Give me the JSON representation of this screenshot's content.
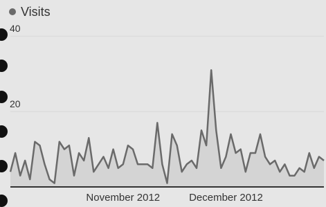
{
  "chart_data": {
    "type": "area",
    "categories": [
      null,
      null,
      null,
      null,
      null,
      null,
      null,
      null,
      null,
      null,
      null,
      null,
      null,
      null,
      null,
      null,
      null,
      null,
      null,
      null,
      null,
      null,
      null,
      "November 2012",
      null,
      null,
      null,
      null,
      null,
      null,
      null,
      null,
      null,
      null,
      null,
      null,
      null,
      null,
      null,
      null,
      null,
      null,
      null,
      null,
      "December 2012",
      null,
      null,
      null,
      null,
      null,
      null,
      null,
      null,
      null,
      null,
      null,
      null,
      null,
      null,
      null,
      null,
      null,
      null,
      null,
      null
    ],
    "series": [
      {
        "name": "Visits",
        "color": "#6a6a6a",
        "fill": "#d4d4d4",
        "values": [
          4,
          9,
          3,
          7,
          2,
          12,
          11,
          6,
          2,
          1,
          12,
          10,
          11,
          3,
          9,
          7,
          13,
          4,
          6,
          8,
          5,
          10,
          5,
          6,
          11,
          10,
          6,
          6,
          6,
          5,
          17,
          6,
          1,
          14,
          11,
          4,
          6,
          7,
          5,
          15,
          11,
          31,
          15,
          5,
          8,
          14,
          9,
          10,
          4,
          9,
          9,
          14,
          8,
          6,
          7,
          4,
          6,
          3,
          3,
          5,
          4,
          9,
          5,
          8,
          7
        ]
      }
    ],
    "ylim": [
      0,
      45
    ],
    "yticks": [
      20,
      40
    ],
    "grid": true
  }
}
